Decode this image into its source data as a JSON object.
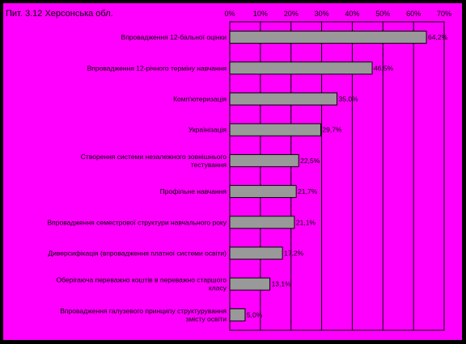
{
  "chart_data": {
    "type": "bar",
    "orientation": "horizontal",
    "title": "Пит. 3.12 Херсонська обл.",
    "xlim": [
      0,
      70
    ],
    "x_ticks": [
      "0%",
      "10%",
      "20%",
      "30%",
      "40%",
      "50%",
      "60%",
      "70%"
    ],
    "x_tick_values": [
      0,
      10,
      20,
      30,
      40,
      50,
      60,
      70
    ],
    "grid": true,
    "bar_color": "#999999",
    "background_color": "#ff00ff",
    "categories": [
      [
        "Впровадження 12-бальної оцінки"
      ],
      [
        "Впровадження 12-річного терміну навчання"
      ],
      [
        "Комп'ютеризація"
      ],
      [
        "Українізація"
      ],
      [
        "Створення системи незалежного зовнішнього",
        "тестування"
      ],
      [
        "Профільне навчання"
      ],
      [
        "Впровадження семестрової структури навчального року"
      ],
      [
        "Диверсифікація (впровадження платної системи освіти)"
      ],
      [
        "Оберігаюча переважно коштів в переважно старшого",
        "класу"
      ],
      [
        "Впровадження галузевого принципу структурування",
        "змісту освіти"
      ]
    ],
    "values": [
      64.2,
      46.5,
      35.0,
      29.7,
      22.5,
      21.7,
      21.1,
      17.2,
      13.1,
      5.0
    ],
    "value_labels": [
      "64,2%",
      "46,5%",
      "35,0%",
      "29,7%",
      "22,5%",
      "21,7%",
      "21,1%",
      "17,2%",
      "13,1%",
      "5,0%"
    ]
  }
}
